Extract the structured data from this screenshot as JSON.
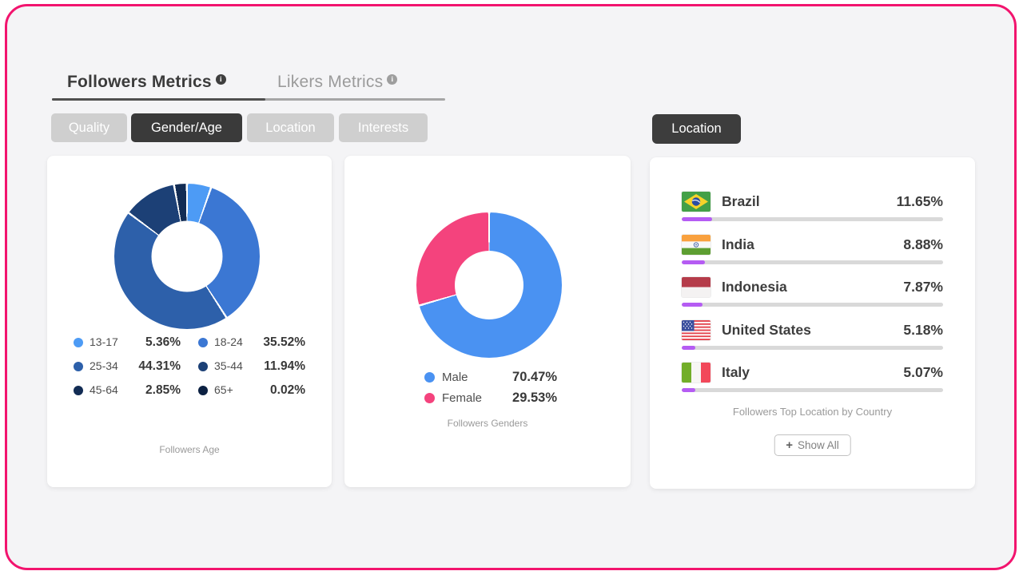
{
  "colors": {
    "frame_border": "#f2146e",
    "inner_background": "#f4f4f6",
    "active_dark": "#3a3a3a",
    "inactive_pill": "#cfcfcf",
    "bar_purple": "#b55cf3",
    "bar_track": "#d9d9d9"
  },
  "icons": {
    "info": "i",
    "plus": "+"
  },
  "header": {
    "tabs": [
      {
        "label": "Followers Metrics",
        "active": true
      },
      {
        "label": "Likers Metrics",
        "active": false
      }
    ]
  },
  "subtabs": {
    "items": [
      {
        "label": "Quality",
        "active": false
      },
      {
        "label": "Gender/Age",
        "active": true
      },
      {
        "label": "Location",
        "active": false
      },
      {
        "label": "Interests",
        "active": false
      }
    ]
  },
  "location_header_button": {
    "label": "Location"
  },
  "age_card": {
    "caption": "Followers Age",
    "items": [
      {
        "label": "13-17",
        "value": "5.36%"
      },
      {
        "label": "18-24",
        "value": "35.52%"
      },
      {
        "label": "25-34",
        "value": "44.31%"
      },
      {
        "label": "35-44",
        "value": "11.94%"
      },
      {
        "label": "45-64",
        "value": "2.85%"
      },
      {
        "label": "65+",
        "value": "0.02%"
      }
    ]
  },
  "gender_card": {
    "caption": "Followers Genders",
    "items": [
      {
        "label": "Male",
        "value": "70.47%"
      },
      {
        "label": "Female",
        "value": "29.53%"
      }
    ]
  },
  "location_card": {
    "caption": "Followers Top Location by Country",
    "show_all_label": "Show All",
    "rows": [
      {
        "country": "Brazil",
        "value": "11.65%",
        "pct": 11.65
      },
      {
        "country": "India",
        "value": "8.88%",
        "pct": 8.88
      },
      {
        "country": "Indonesia",
        "value": "7.87%",
        "pct": 7.87
      },
      {
        "country": "United States",
        "value": "5.18%",
        "pct": 5.18
      },
      {
        "country": "Italy",
        "value": "5.07%",
        "pct": 5.07
      }
    ]
  },
  "chart_data": [
    {
      "id": "followers-age",
      "type": "pie",
      "subtype": "donut",
      "title": "Followers Age",
      "labels": [
        "13-17",
        "18-24",
        "25-34",
        "35-44",
        "45-64",
        "65+"
      ],
      "values": [
        5.36,
        35.52,
        44.31,
        11.94,
        2.85,
        0.02
      ],
      "colors": [
        "#4d9bf5",
        "#3b77d3",
        "#2d60aa",
        "#1c4076",
        "#122c54",
        "#0c2142"
      ],
      "unit": "%",
      "legend_position": "bottom"
    },
    {
      "id": "followers-genders",
      "type": "pie",
      "subtype": "donut",
      "title": "Followers Genders",
      "labels": [
        "Male",
        "Female"
      ],
      "values": [
        70.47,
        29.53
      ],
      "colors": [
        "#4a92f2",
        "#f4437d"
      ],
      "unit": "%",
      "legend_position": "bottom"
    },
    {
      "id": "followers-top-location",
      "type": "bar",
      "title": "Followers Top Location by Country",
      "categories": [
        "Brazil",
        "India",
        "Indonesia",
        "United States",
        "Italy"
      ],
      "values": [
        11.65,
        8.88,
        7.87,
        5.18,
        5.07
      ],
      "unit": "%",
      "bar_color": "#b55cf3",
      "xlim": [
        0,
        100
      ]
    }
  ]
}
